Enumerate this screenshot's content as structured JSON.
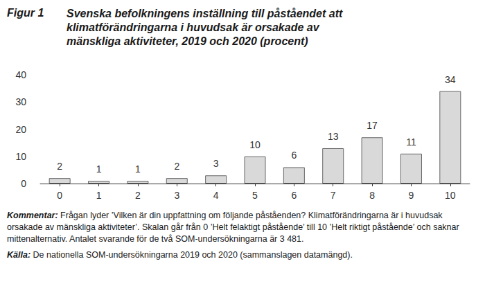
{
  "chart_data": {
    "type": "bar",
    "figure_label": "Figur 1",
    "title": "Svenska befolkningens inställning till påståendet att klimatförändringarna i huvudsak är orsakade av mänskliga aktiviteter, 2019 och 2020 (procent)",
    "categories": [
      "0",
      "1",
      "2",
      "3",
      "4",
      "5",
      "6",
      "7",
      "8",
      "9",
      "10"
    ],
    "values": [
      2,
      1,
      1,
      2,
      3,
      10,
      6,
      13,
      17,
      11,
      34
    ],
    "color": "#d9d9d9",
    "ylim": [
      0,
      40
    ],
    "yticks": [
      0,
      10,
      20,
      30,
      40
    ],
    "grid": false,
    "data_labels": true,
    "notes": [
      {
        "label": "Kommentar:",
        "text": "Frågan lyder ’Vilken är din uppfattning om följande påståenden? Klimatförändringarna är i huvudsak orsakade av mänskliga aktiviteter’. Skalan går från 0 ’Helt felaktigt påstående’ till 10 ’Helt riktigt påstående’ och saknar mittenalternativ. Antalet svarande för de två SOM-undersökningarna är 3 481."
      },
      {
        "label": "Källa:",
        "text": "De nationella SOM-undersökningarna 2019 och 2020 (sammanslagen datamängd)."
      }
    ]
  }
}
